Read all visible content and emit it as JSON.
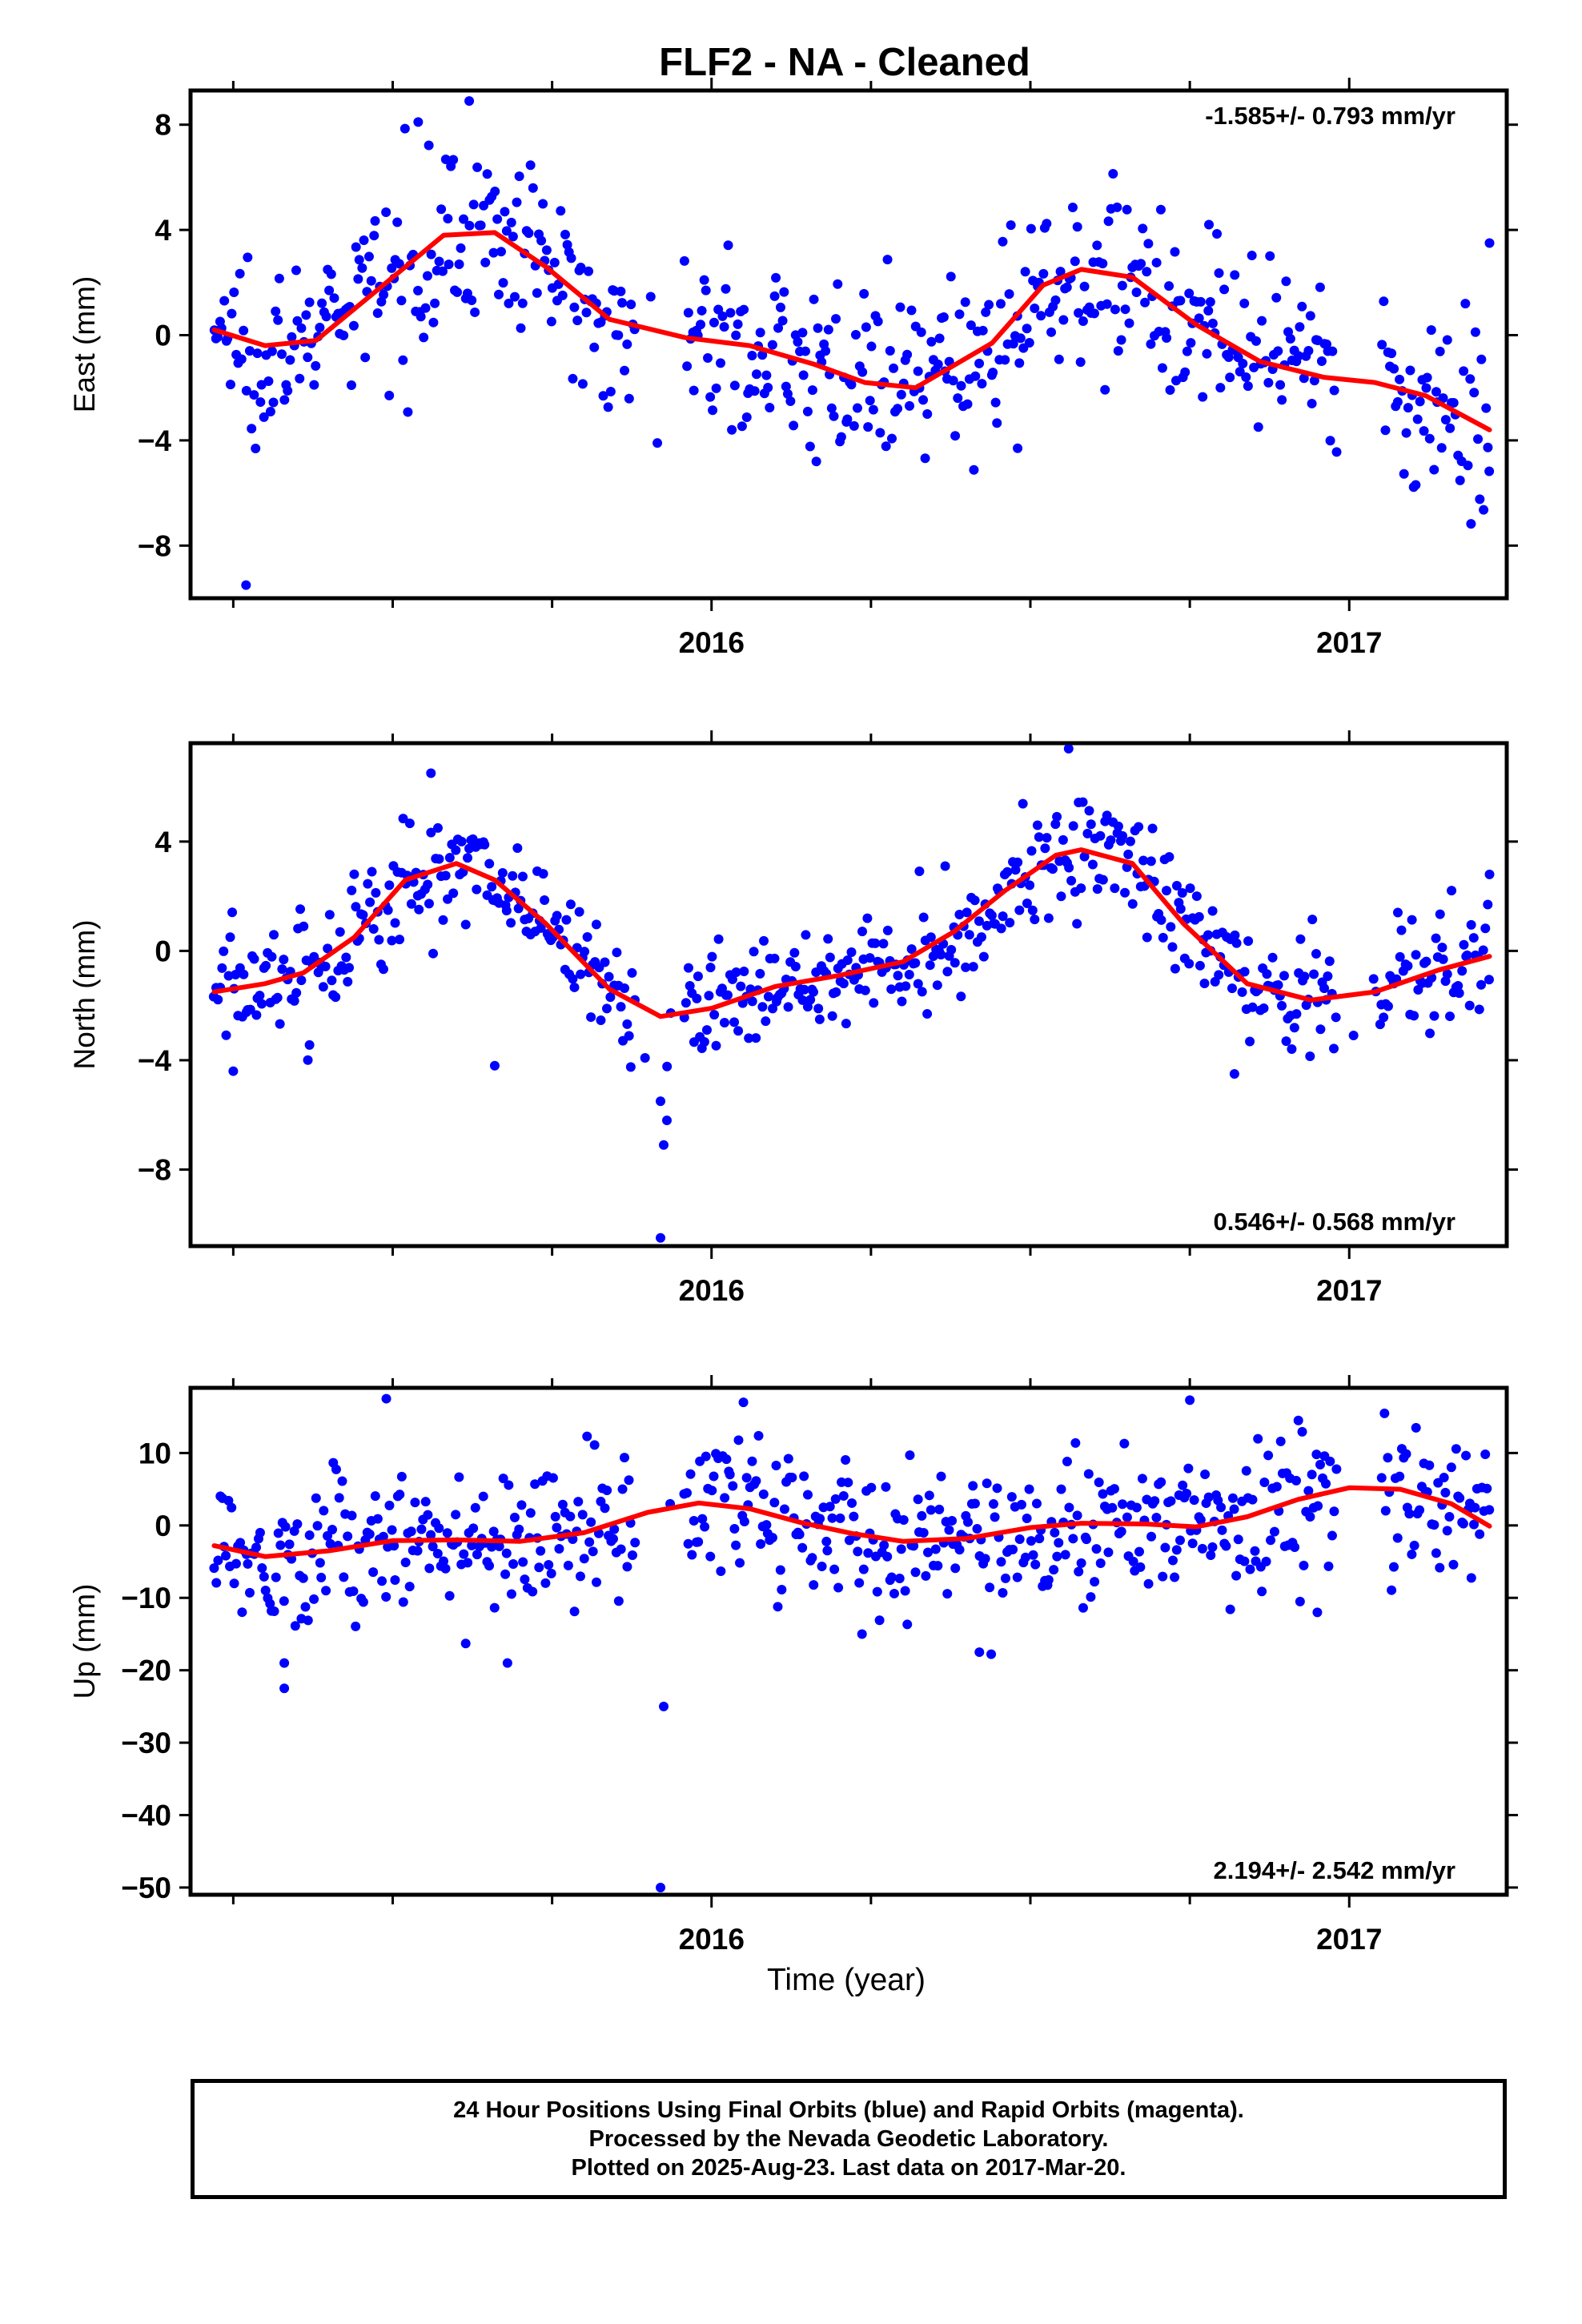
{
  "title": "FLF2  - NA - Cleaned",
  "xlabel": "Time (year)",
  "footer": {
    "line1": "24 Hour Positions Using Final Orbits (blue) and Rapid Orbits (magenta).",
    "line2": "Processed by the Nevada Geodetic Laboratory.",
    "line3": "Plotted on 2025-Aug-23. Last data on 2017-Mar-20."
  },
  "colors": {
    "points": "#0000ff",
    "fit": "#ff0000",
    "axis": "#000000"
  },
  "chart_data": [
    {
      "type": "scatter",
      "panel": "east",
      "ylabel": "East (mm)",
      "rate_text": "-1.585+/- 0.793 mm/yr",
      "rate_position": "top-right",
      "xlim": [
        2015.183,
        2017.247
      ],
      "ylim": [
        -10,
        9.3
      ],
      "xticks": [
        2016,
        2017
      ],
      "yticks": [
        -8,
        -4,
        0,
        4,
        8
      ],
      "yticklabels": [
        "−8",
        "−4",
        "0",
        "4",
        "8"
      ],
      "fit": {
        "x": [
          2015.22,
          2015.3,
          2015.38,
          2015.48,
          2015.58,
          2015.66,
          2015.74,
          2015.84,
          2015.96,
          2016.06,
          2016.16,
          2016.24,
          2016.32,
          2016.44,
          2016.52,
          2016.58,
          2016.66,
          2016.76,
          2016.86,
          2016.96,
          2017.04,
          2017.12,
          2017.22
        ],
        "y": [
          0.2,
          -0.4,
          -0.2,
          1.8,
          3.8,
          3.9,
          2.6,
          0.6,
          -0.1,
          -0.4,
          -1.1,
          -1.8,
          -2.0,
          -0.3,
          1.9,
          2.5,
          2.2,
          0.4,
          -1.0,
          -1.6,
          -1.8,
          -2.3,
          -3.6
        ]
      },
      "series": {
        "x_start": 2015.22,
        "x_end": 2017.22,
        "gaps": [
          [
            2015.88,
            2015.955
          ],
          [
            2016.98,
            2017.05
          ]
        ],
        "approx_count": 640,
        "scatter_mm": 1.6,
        "outliers": [
          {
            "x": 2015.27,
            "y": -9.5
          },
          {
            "x": 2015.915,
            "y": -4.1
          },
          {
            "x": 2015.62,
            "y": 8.9
          },
          {
            "x": 2015.54,
            "y": 8.1
          },
          {
            "x": 2016.78,
            "y": 4.2
          },
          {
            "x": 2016.48,
            "y": -4.3
          },
          {
            "x": 2017.22,
            "y": 3.5
          }
        ]
      }
    },
    {
      "type": "scatter",
      "panel": "north",
      "ylabel": "North (mm)",
      "rate_text": "0.546+/- 0.568 mm/yr",
      "rate_position": "bottom-right",
      "xlim": [
        2015.183,
        2017.247
      ],
      "ylim": [
        -10.8,
        7.6
      ],
      "xticks": [
        2016,
        2017
      ],
      "yticks": [
        -8,
        -4,
        0,
        4
      ],
      "yticklabels": [
        "−8",
        "−4",
        "0",
        "4"
      ],
      "fit": {
        "x": [
          2015.22,
          2015.3,
          2015.36,
          2015.44,
          2015.52,
          2015.6,
          2015.66,
          2015.74,
          2015.84,
          2015.92,
          2016.0,
          2016.1,
          2016.2,
          2016.3,
          2016.38,
          2016.46,
          2016.54,
          2016.58,
          2016.66,
          2016.74,
          2016.84,
          2016.94,
          2017.04,
          2017.14,
          2017.22
        ],
        "y": [
          -1.5,
          -1.2,
          -0.8,
          0.5,
          2.6,
          3.2,
          2.6,
          1.0,
          -1.4,
          -2.4,
          -2.1,
          -1.3,
          -0.9,
          -0.4,
          0.7,
          2.2,
          3.5,
          3.7,
          3.2,
          1.0,
          -1.2,
          -1.8,
          -1.5,
          -0.7,
          -0.2
        ]
      },
      "series": {
        "x_start": 2015.22,
        "x_end": 2017.22,
        "gaps": [
          [
            2015.88,
            2015.955
          ],
          [
            2016.98,
            2017.05
          ]
        ],
        "approx_count": 640,
        "scatter_mm": 1.1,
        "outliers": [
          {
            "x": 2015.92,
            "y": -10.5
          },
          {
            "x": 2015.925,
            "y": -7.1
          },
          {
            "x": 2015.93,
            "y": -6.2
          },
          {
            "x": 2015.92,
            "y": -5.5
          },
          {
            "x": 2016.56,
            "y": 7.4
          },
          {
            "x": 2015.56,
            "y": 6.5
          },
          {
            "x": 2015.66,
            "y": -4.2
          },
          {
            "x": 2016.82,
            "y": -4.5
          },
          {
            "x": 2015.25,
            "y": -4.4
          },
          {
            "x": 2017.22,
            "y": 2.8
          }
        ]
      }
    },
    {
      "type": "scatter",
      "panel": "up",
      "ylabel": "Up (mm)",
      "rate_text": "2.194+/- 2.542 mm/yr",
      "rate_position": "bottom-right",
      "xlim": [
        2015.183,
        2017.247
      ],
      "ylim": [
        -51,
        19
      ],
      "xticks": [
        2016,
        2017
      ],
      "yticks": [
        -50,
        -40,
        -30,
        -20,
        -10,
        0,
        10
      ],
      "yticklabels": [
        "−50",
        "−40",
        "−30",
        "−20",
        "−10",
        "0",
        "10"
      ],
      "fit": {
        "x": [
          2015.22,
          2015.3,
          2015.4,
          2015.5,
          2015.6,
          2015.7,
          2015.8,
          2015.9,
          2015.98,
          2016.06,
          2016.14,
          2016.22,
          2016.3,
          2016.4,
          2016.5,
          2016.58,
          2016.68,
          2016.76,
          2016.84,
          2016.92,
          2017.0,
          2017.08,
          2017.16,
          2017.22
        ],
        "y": [
          -2.8,
          -4.3,
          -3.5,
          -2.1,
          -2.0,
          -2.2,
          -1.0,
          1.8,
          3.1,
          2.3,
          0.4,
          -1.1,
          -2.2,
          -1.8,
          -0.3,
          0.3,
          0.2,
          -0.2,
          1.2,
          3.6,
          5.2,
          5.0,
          3.0,
          -0.1
        ]
      },
      "series": {
        "x_start": 2015.22,
        "x_end": 2017.22,
        "gaps": [
          [
            2015.88,
            2015.955
          ],
          [
            2016.98,
            2017.05
          ]
        ],
        "approx_count": 640,
        "scatter_mm": 5.0,
        "outliers": [
          {
            "x": 2015.92,
            "y": -50.0
          },
          {
            "x": 2015.925,
            "y": -25.0
          },
          {
            "x": 2015.33,
            "y": -22.5
          },
          {
            "x": 2015.33,
            "y": -19.0
          },
          {
            "x": 2015.68,
            "y": -19.0
          },
          {
            "x": 2015.49,
            "y": 17.5
          },
          {
            "x": 2016.05,
            "y": 17.0
          },
          {
            "x": 2016.75,
            "y": 17.3
          },
          {
            "x": 2016.42,
            "y": -17.5
          },
          {
            "x": 2016.95,
            "y": -12.0
          }
        ]
      }
    }
  ]
}
